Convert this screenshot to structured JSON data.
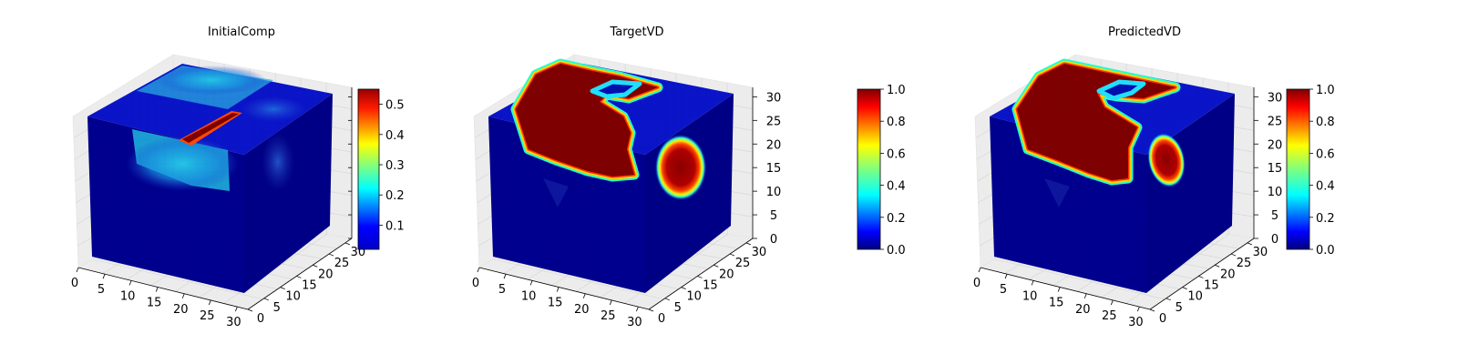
{
  "chart_data": [
    {
      "type": "voxel-3d",
      "title": "InitialComp",
      "x_ticks": [
        "0",
        "5",
        "10",
        "15",
        "20",
        "25",
        "30"
      ],
      "y_ticks": [
        "0",
        "5",
        "10",
        "15",
        "20",
        "25",
        "30"
      ],
      "z_ticks": [],
      "xlim": [
        0,
        32
      ],
      "ylim": [
        0,
        32
      ],
      "zlim": [
        0,
        32
      ],
      "colorbar": {
        "ticks": [
          "0.1",
          "0.2",
          "0.3",
          "0.4",
          "0.5"
        ],
        "tick_values": [
          0.1,
          0.2,
          0.3,
          0.4,
          0.5
        ],
        "range": [
          0.02,
          0.55
        ],
        "colormap": "jet"
      },
      "description_values": {
        "background": 0.04,
        "cyan_region": 0.22,
        "red_stripe": 0.55
      }
    },
    {
      "type": "voxel-3d",
      "title": "TargetVD",
      "x_ticks": [
        "0",
        "5",
        "10",
        "15",
        "20",
        "25",
        "30"
      ],
      "y_ticks": [
        "0",
        "5",
        "10",
        "15",
        "20",
        "25",
        "30"
      ],
      "z_ticks": [
        "0",
        "5",
        "10",
        "15",
        "20",
        "25",
        "30"
      ],
      "xlim": [
        0,
        32
      ],
      "ylim": [
        0,
        32
      ],
      "zlim": [
        0,
        32
      ],
      "colorbar": {
        "ticks": [
          "0.0",
          "0.2",
          "0.4",
          "0.6",
          "0.8",
          "1.0"
        ],
        "tick_values": [
          0,
          0.2,
          0.4,
          0.6,
          0.8,
          1.0
        ],
        "range": [
          0,
          1
        ],
        "colormap": "jet"
      },
      "description_values": {
        "background": 0.0,
        "blob": 1.0
      }
    },
    {
      "type": "voxel-3d",
      "title": "PredictedVD",
      "x_ticks": [
        "0",
        "5",
        "10",
        "15",
        "20",
        "25",
        "30"
      ],
      "y_ticks": [
        "0",
        "5",
        "10",
        "15",
        "20",
        "25",
        "30"
      ],
      "z_ticks": [
        "0",
        "5",
        "10",
        "15",
        "20",
        "25",
        "30"
      ],
      "xlim": [
        0,
        32
      ],
      "ylim": [
        0,
        32
      ],
      "zlim": [
        0,
        32
      ],
      "colorbar": {
        "ticks": [
          "0.0",
          "0.2",
          "0.4",
          "0.6",
          "0.8",
          "1.0"
        ],
        "tick_values": [
          0,
          0.2,
          0.4,
          0.6,
          0.8,
          1.0
        ],
        "range": [
          0,
          1
        ],
        "colormap": "jet"
      },
      "description_values": {
        "background": 0.0,
        "blob": 1.0
      }
    }
  ],
  "colors": {
    "pane_face": "#ececec",
    "grid": "#d4d4d4",
    "cube_dark": "#00007f",
    "jet_red": "#7f0000"
  }
}
